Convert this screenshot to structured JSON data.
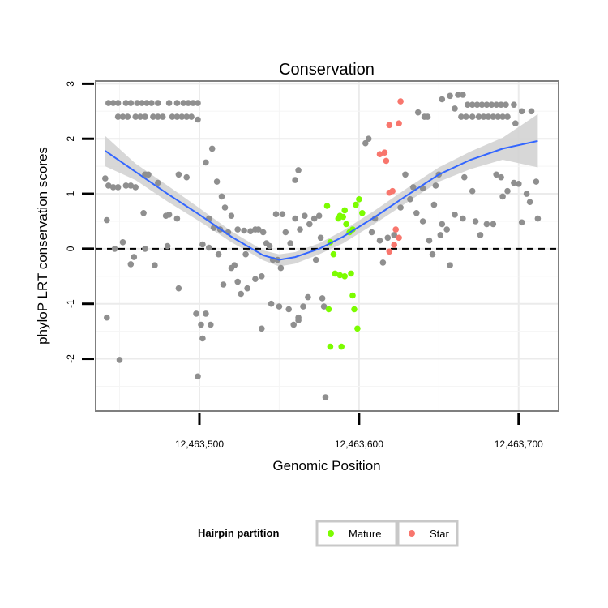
{
  "chart_data": {
    "type": "scatter",
    "title": "Conservation",
    "xlabel": "Genomic Position",
    "ylabel": "phyloP LRT conservation scores",
    "xlim": [
      12463435,
      12463725
    ],
    "ylim": [
      -2.95,
      3.05
    ],
    "xticks": [
      12463500,
      12463600,
      12463700
    ],
    "xtick_labels": [
      "12,463,500",
      "12,463,600",
      "12,463,700"
    ],
    "yticks": [
      -2,
      -1,
      0,
      1,
      2,
      3
    ],
    "ytick_labels": [
      "-2",
      "-1",
      "0",
      "1",
      "2",
      "3"
    ],
    "reference_line": {
      "y": 0,
      "style": "dashed"
    },
    "legend": {
      "title": "Hairpin partition",
      "position": "bottom",
      "entries": [
        {
          "label": "Mature",
          "color": "#7CFC00"
        },
        {
          "label": "Star",
          "color": "#F8766D"
        }
      ]
    },
    "colors": {
      "other": "#8f8f8f",
      "smooth_line": "#3366FF",
      "band": "#d3d3d3"
    },
    "smooth": {
      "x": [
        12463441,
        12463460,
        12463480,
        12463500,
        12463520,
        12463540,
        12463550,
        12463560,
        12463575,
        12463590,
        12463610,
        12463630,
        12463650,
        12463670,
        12463690,
        12463712
      ],
      "y": [
        1.78,
        1.4,
        1.0,
        0.62,
        0.22,
        -0.12,
        -0.2,
        -0.15,
        0.0,
        0.22,
        0.58,
        0.97,
        1.35,
        1.62,
        1.82,
        1.96
      ],
      "upper": [
        2.05,
        1.55,
        1.15,
        0.74,
        0.32,
        -0.03,
        -0.1,
        -0.06,
        0.1,
        0.33,
        0.7,
        1.1,
        1.48,
        1.77,
        2.02,
        2.45
      ],
      "lower": [
        1.5,
        1.25,
        0.86,
        0.5,
        0.12,
        -0.21,
        -0.32,
        -0.27,
        -0.1,
        0.1,
        0.46,
        0.84,
        1.22,
        1.45,
        1.62,
        1.48
      ]
    },
    "series": [
      {
        "name": "Other",
        "points": [
          [
            12463443,
            2.65
          ],
          [
            12463446,
            2.65
          ],
          [
            12463449,
            2.65
          ],
          [
            12463454,
            2.65
          ],
          [
            12463457,
            2.65
          ],
          [
            12463461,
            2.65
          ],
          [
            12463464,
            2.65
          ],
          [
            12463467,
            2.65
          ],
          [
            12463470,
            2.65
          ],
          [
            12463474,
            2.65
          ],
          [
            12463481,
            2.65
          ],
          [
            12463486,
            2.65
          ],
          [
            12463490,
            2.65
          ],
          [
            12463493,
            2.65
          ],
          [
            12463496,
            2.65
          ],
          [
            12463499,
            2.65
          ],
          [
            12463449,
            2.4
          ],
          [
            12463452,
            2.4
          ],
          [
            12463455,
            2.4
          ],
          [
            12463460,
            2.4
          ],
          [
            12463463,
            2.4
          ],
          [
            12463466,
            2.4
          ],
          [
            12463471,
            2.4
          ],
          [
            12463474,
            2.4
          ],
          [
            12463477,
            2.4
          ],
          [
            12463483,
            2.4
          ],
          [
            12463486,
            2.4
          ],
          [
            12463489,
            2.4
          ],
          [
            12463492,
            2.4
          ],
          [
            12463495,
            2.4
          ],
          [
            12463499,
            2.35
          ],
          [
            12463441,
            1.28
          ],
          [
            12463443,
            1.15
          ],
          [
            12463446,
            1.12
          ],
          [
            12463449,
            1.12
          ],
          [
            12463454,
            1.15
          ],
          [
            12463457,
            1.15
          ],
          [
            12463460,
            1.12
          ],
          [
            12463466,
            1.35
          ],
          [
            12463468,
            1.35
          ],
          [
            12463474,
            1.2
          ],
          [
            12463479,
            0.6
          ],
          [
            12463481,
            0.62
          ],
          [
            12463487,
            1.35
          ],
          [
            12463492,
            1.3
          ],
          [
            12463486,
            0.55
          ],
          [
            12463465,
            0.65
          ],
          [
            12463442,
            0.52
          ],
          [
            12463447,
            0
          ],
          [
            12463452,
            0.12
          ],
          [
            12463457,
            -0.28
          ],
          [
            12463459,
            -0.15
          ],
          [
            12463466,
            0
          ],
          [
            12463472,
            -0.3
          ],
          [
            12463480,
            0.05
          ],
          [
            12463487,
            -0.72
          ],
          [
            12463442,
            -1.25
          ],
          [
            12463450,
            -2.02
          ],
          [
            12463499,
            -2.32
          ],
          [
            12463504,
            1.57
          ],
          [
            12463508,
            1.82
          ],
          [
            12463511,
            1.22
          ],
          [
            12463514,
            0.95
          ],
          [
            12463516,
            0.75
          ],
          [
            12463520,
            0.6
          ],
          [
            12463524,
            0.35
          ],
          [
            12463528,
            0.33
          ],
          [
            12463532,
            0.32
          ],
          [
            12463535,
            0.35
          ],
          [
            12463537,
            0.35
          ],
          [
            12463506,
            0.55
          ],
          [
            12463509,
            0.38
          ],
          [
            12463513,
            0.35
          ],
          [
            12463518,
            0.3
          ],
          [
            12463502,
            0.08
          ],
          [
            12463506,
            0.02
          ],
          [
            12463512,
            -0.1
          ],
          [
            12463520,
            -0.35
          ],
          [
            12463524,
            -0.6
          ],
          [
            12463529,
            -0.1
          ],
          [
            12463498,
            -1.18
          ],
          [
            12463501,
            -1.38
          ],
          [
            12463502,
            -1.63
          ],
          [
            12463504,
            -1.18
          ],
          [
            12463507,
            -1.38
          ],
          [
            12463515,
            -0.65
          ],
          [
            12463522,
            -0.3
          ],
          [
            12463526,
            -0.82
          ],
          [
            12463530,
            -0.72
          ],
          [
            12463535,
            -0.55
          ],
          [
            12463539,
            -0.5
          ],
          [
            12463540,
            0.3
          ],
          [
            12463542,
            0.1
          ],
          [
            12463544,
            0.05
          ],
          [
            12463546,
            -0.2
          ],
          [
            12463549,
            -0.2
          ],
          [
            12463551,
            -0.35
          ],
          [
            12463548,
            0.63
          ],
          [
            12463552,
            0.63
          ],
          [
            12463554,
            0.3
          ],
          [
            12463557,
            0.1
          ],
          [
            12463539,
            -1.45
          ],
          [
            12463545,
            -1.0
          ],
          [
            12463550,
            -1.05
          ],
          [
            12463556,
            -1.1
          ],
          [
            12463559,
            -1.38
          ],
          [
            12463562,
            -1.25
          ],
          [
            12463565,
            -1.05
          ],
          [
            12463568,
            -0.88
          ],
          [
            12463562,
            -1.3
          ],
          [
            12463560,
            1.25
          ],
          [
            12463562,
            1.43
          ],
          [
            12463560,
            0.55
          ],
          [
            12463563,
            0.35
          ],
          [
            12463566,
            0.6
          ],
          [
            12463569,
            0.45
          ],
          [
            12463572,
            0.55
          ],
          [
            12463575,
            0.6
          ],
          [
            12463576,
            0.2
          ],
          [
            12463577,
            -0.9
          ],
          [
            12463578,
            -1.05
          ],
          [
            12463573,
            -0.2
          ],
          [
            12463579,
            -2.7
          ],
          [
            12463604,
            1.92
          ],
          [
            12463606,
            2.0
          ],
          [
            12463608,
            0.3
          ],
          [
            12463610,
            0.55
          ],
          [
            12463613,
            0.15
          ],
          [
            12463615,
            -0.25
          ],
          [
            12463618,
            0.2
          ],
          [
            12463622,
            0.25
          ],
          [
            12463626,
            0.75
          ],
          [
            12463629,
            1.35
          ],
          [
            12463632,
            0.9
          ],
          [
            12463634,
            1.12
          ],
          [
            12463636,
            0.65
          ],
          [
            12463640,
            1.1
          ],
          [
            12463637,
            2.48
          ],
          [
            12463641,
            2.4
          ],
          [
            12463643,
            2.4
          ],
          [
            12463648,
            1.15
          ],
          [
            12463650,
            1.35
          ],
          [
            12463652,
            0.45
          ],
          [
            12463655,
            0.35
          ],
          [
            12463657,
            -0.3
          ],
          [
            12463660,
            0.62
          ],
          [
            12463665,
            0.55
          ],
          [
            12463652,
            2.72
          ],
          [
            12463657,
            2.78
          ],
          [
            12463662,
            2.8
          ],
          [
            12463665,
            2.8
          ],
          [
            12463660,
            2.55
          ],
          [
            12463668,
            2.62
          ],
          [
            12463671,
            2.62
          ],
          [
            12463674,
            2.62
          ],
          [
            12463677,
            2.62
          ],
          [
            12463680,
            2.62
          ],
          [
            12463683,
            2.62
          ],
          [
            12463686,
            2.62
          ],
          [
            12463689,
            2.62
          ],
          [
            12463692,
            2.62
          ],
          [
            12463697,
            2.62
          ],
          [
            12463664,
            2.4
          ],
          [
            12463667,
            2.4
          ],
          [
            12463671,
            2.4
          ],
          [
            12463675,
            2.4
          ],
          [
            12463678,
            2.4
          ],
          [
            12463681,
            2.4
          ],
          [
            12463684,
            2.4
          ],
          [
            12463687,
            2.4
          ],
          [
            12463690,
            2.4
          ],
          [
            12463693,
            2.4
          ],
          [
            12463698,
            2.28
          ],
          [
            12463702,
            2.5
          ],
          [
            12463708,
            2.5
          ],
          [
            12463666,
            1.3
          ],
          [
            12463671,
            1.05
          ],
          [
            12463676,
            0.25
          ],
          [
            12463680,
            0.45
          ],
          [
            12463686,
            1.35
          ],
          [
            12463689,
            1.3
          ],
          [
            12463690,
            0.95
          ],
          [
            12463693,
            1.05
          ],
          [
            12463697,
            1.2
          ],
          [
            12463700,
            1.18
          ],
          [
            12463705,
            1.0
          ],
          [
            12463707,
            0.85
          ],
          [
            12463711,
            1.22
          ],
          [
            12463702,
            0.48
          ],
          [
            12463712,
            0.55
          ],
          [
            12463640,
            0.5
          ],
          [
            12463644,
            0.15
          ],
          [
            12463647,
            0.8
          ],
          [
            12463651,
            0.25
          ],
          [
            12463646,
            -0.1
          ],
          [
            12463673,
            0.5
          ],
          [
            12463684,
            0.45
          ]
        ]
      },
      {
        "name": "Mature",
        "points": [
          [
            12463580,
            0.78
          ],
          [
            12463582,
            0.12
          ],
          [
            12463584,
            -0.1
          ],
          [
            12463585,
            -0.45
          ],
          [
            12463587,
            0.55
          ],
          [
            12463588,
            0.6
          ],
          [
            12463590,
            0.58
          ],
          [
            12463591,
            0.7
          ],
          [
            12463592,
            0.45
          ],
          [
            12463594,
            0.3
          ],
          [
            12463596,
            0.35
          ],
          [
            12463598,
            0.8
          ],
          [
            12463600,
            0.9
          ],
          [
            12463602,
            0.65
          ],
          [
            12463588,
            -0.48
          ],
          [
            12463591,
            -0.5
          ],
          [
            12463595,
            -0.45
          ],
          [
            12463596,
            -0.85
          ],
          [
            12463597,
            -1.1
          ],
          [
            12463599,
            -1.45
          ],
          [
            12463581,
            -1.1
          ],
          [
            12463582,
            -1.78
          ],
          [
            12463589,
            -1.78
          ]
        ]
      },
      {
        "name": "Star",
        "points": [
          [
            12463626,
            2.68
          ],
          [
            12463619,
            2.25
          ],
          [
            12463625,
            2.28
          ],
          [
            12463613,
            1.72
          ],
          [
            12463616,
            1.75
          ],
          [
            12463617,
            1.6
          ],
          [
            12463619,
            1.02
          ],
          [
            12463621,
            1.05
          ],
          [
            12463623,
            0.35
          ],
          [
            12463625,
            0.2
          ],
          [
            12463622,
            0.07
          ],
          [
            12463619,
            -0.05
          ]
        ]
      }
    ]
  }
}
